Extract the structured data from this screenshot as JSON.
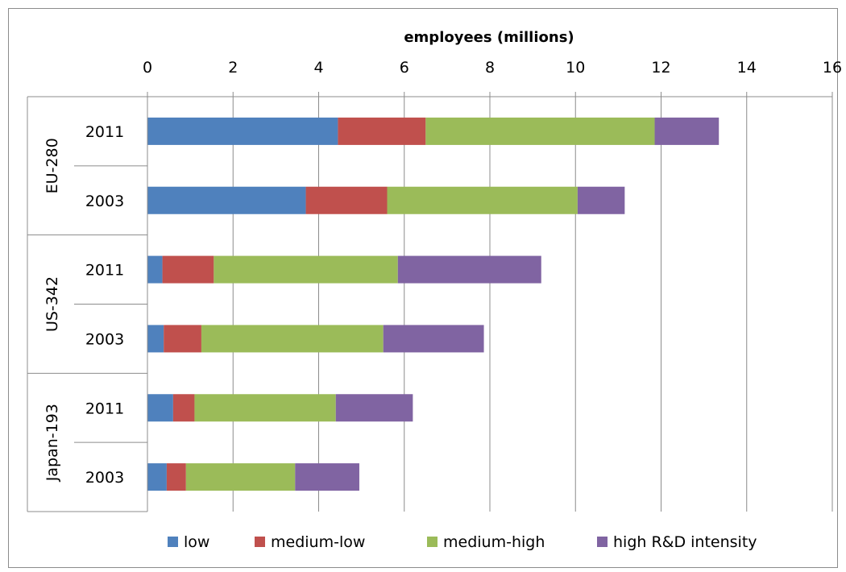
{
  "chart_data": {
    "type": "bar",
    "orientation": "horizontal",
    "stacked": true,
    "xlabel": "employees (millions)",
    "xaxis_position": "top",
    "xlim": [
      0,
      16
    ],
    "xticks": [
      "0",
      "2",
      "4",
      "6",
      "8",
      "10",
      "12",
      "14",
      "16"
    ],
    "grid": "vertical",
    "legend_position": "bottom",
    "groups": [
      {
        "name": "EU-280",
        "rows": [
          "2011",
          "2003"
        ]
      },
      {
        "name": "US-342",
        "rows": [
          "2011",
          "2003"
        ]
      },
      {
        "name": "Japan-193",
        "rows": [
          "2011",
          "2003"
        ]
      }
    ],
    "categories": [
      "EU-280 2011",
      "EU-280 2003",
      "US-342 2011",
      "US-342 2003",
      "Japan-193 2011",
      "Japan-193 2003"
    ],
    "series": [
      {
        "name": "low",
        "color": "#4f81bd",
        "values": [
          4.45,
          3.7,
          0.35,
          0.38,
          0.6,
          0.45
        ]
      },
      {
        "name": "medium-low",
        "color": "#c0504d",
        "values": [
          2.05,
          1.9,
          1.2,
          0.88,
          0.5,
          0.45
        ]
      },
      {
        "name": "medium-high",
        "color": "#9bbb59",
        "values": [
          5.35,
          4.45,
          4.3,
          4.25,
          3.3,
          2.55
        ]
      },
      {
        "name": "high R&D intensity",
        "color": "#8064a2",
        "values": [
          1.5,
          1.1,
          3.35,
          2.35,
          1.8,
          1.5
        ]
      }
    ]
  }
}
